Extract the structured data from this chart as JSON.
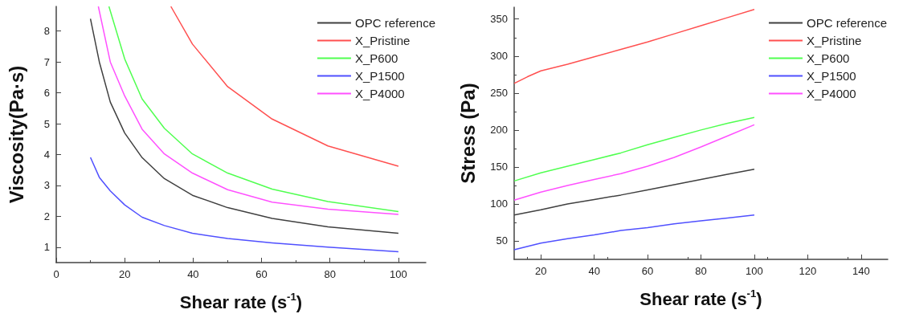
{
  "chart_data": [
    {
      "type": "line",
      "xlabel": "Shear rate (s$^{-1}$)",
      "ylabel": "Viscosity(Pa·s)",
      "xlim": [
        0,
        108
      ],
      "xticks": [
        0,
        20,
        40,
        60,
        80,
        100
      ],
      "ylim": [
        0.5,
        8.8
      ],
      "yticks": [
        1,
        2,
        3,
        4,
        5,
        6,
        7,
        8
      ],
      "grid": false,
      "legend": "top right",
      "series": [
        {
          "name": "OPC reference",
          "color": "#404040",
          "x": [
            10,
            12.6,
            15.8,
            20,
            25.1,
            31.6,
            39.8,
            50.1,
            63.1,
            79.4,
            100
          ],
          "values": [
            8.4,
            7.0,
            5.7,
            4.7,
            3.9,
            3.22,
            2.68,
            2.28,
            1.93,
            1.66,
            1.45
          ]
        },
        {
          "name": "X_Pristine",
          "color": "#ff5050",
          "x": [
            33.5,
            39.8,
            50.1,
            63.1,
            79.4,
            100
          ],
          "values": [
            8.8,
            7.58,
            6.2,
            5.15,
            4.28,
            3.62
          ]
        },
        {
          "name": "X_P600",
          "color": "#50ff50",
          "x": [
            15.4,
            20,
            25.1,
            31.6,
            39.8,
            50.1,
            63.1,
            79.4,
            100
          ],
          "values": [
            8.8,
            7.1,
            5.8,
            4.85,
            4.02,
            3.4,
            2.88,
            2.48,
            2.15
          ]
        },
        {
          "name": "X_P1500",
          "color": "#5050ff",
          "x": [
            10,
            12.6,
            15.8,
            20,
            25.1,
            31.6,
            39.8,
            50.1,
            63.1,
            79.4,
            100
          ],
          "values": [
            3.91,
            3.26,
            2.82,
            2.37,
            1.97,
            1.7,
            1.45,
            1.28,
            1.14,
            1.0,
            0.85
          ]
        },
        {
          "name": "X_P4000",
          "color": "#ff50ff",
          "x": [
            12.3,
            15.8,
            20,
            25.1,
            31.6,
            39.8,
            50.1,
            63.1,
            79.4,
            100
          ],
          "values": [
            8.8,
            7.0,
            5.9,
            4.82,
            4.02,
            3.4,
            2.86,
            2.46,
            2.23,
            2.06
          ]
        }
      ]
    },
    {
      "type": "line",
      "xlabel": "Shear rate (s$^{-1}$)",
      "ylabel": "Stress (Pa)",
      "xlim": [
        10,
        150
      ],
      "xticks": [
        20,
        40,
        60,
        80,
        100,
        120,
        140
      ],
      "ylim": [
        25,
        366
      ],
      "yticks": [
        50,
        100,
        150,
        200,
        250,
        300,
        350
      ],
      "grid": false,
      "legend": "top right",
      "series": [
        {
          "name": "OPC reference",
          "color": "#404040",
          "x": [
            10,
            20,
            30,
            40,
            50,
            60,
            70,
            80,
            90,
            100
          ],
          "values": [
            85,
            92,
            100,
            106,
            112,
            119,
            126,
            133,
            140,
            147
          ]
        },
        {
          "name": "X_Pristine",
          "color": "#ff5050",
          "x": [
            10,
            15,
            20,
            30,
            40,
            50,
            60,
            70,
            80,
            90,
            100
          ],
          "values": [
            263,
            272,
            280,
            289,
            299,
            309,
            319,
            330,
            341,
            352,
            363
          ]
        },
        {
          "name": "X_P600",
          "color": "#50ff50",
          "x": [
            10,
            20,
            30,
            40,
            50,
            60,
            70,
            80,
            90,
            100
          ],
          "values": [
            131,
            142,
            151,
            160,
            169,
            180,
            190,
            200,
            209,
            217
          ]
        },
        {
          "name": "X_P1500",
          "color": "#5050ff",
          "x": [
            10,
            20,
            30,
            40,
            50,
            60,
            70,
            80,
            90,
            100
          ],
          "values": [
            38,
            47,
            53,
            58,
            64,
            68,
            73,
            77,
            81,
            85
          ]
        },
        {
          "name": "X_P4000",
          "color": "#ff50ff",
          "x": [
            10,
            20,
            30,
            40,
            50,
            60,
            70,
            80,
            90,
            100
          ],
          "values": [
            105,
            116,
            125,
            133,
            141,
            151,
            163,
            177,
            192,
            207
          ]
        }
      ]
    }
  ]
}
